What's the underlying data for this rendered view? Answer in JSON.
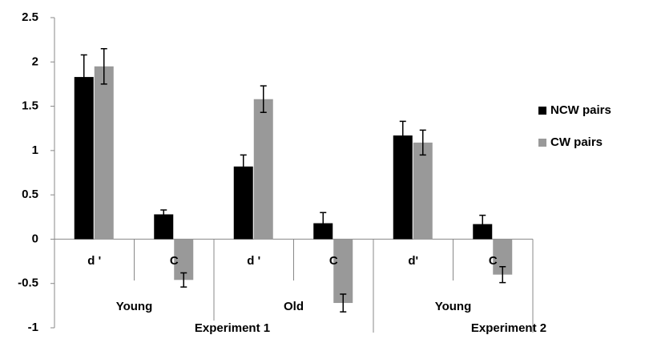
{
  "chart_data": {
    "type": "bar",
    "categories": [
      "d '",
      "C",
      "d '",
      "C",
      "d'",
      "C"
    ],
    "groups": [
      "Young",
      "Old",
      "Young"
    ],
    "experiments": [
      "Experiment 1",
      "Experiment 2"
    ],
    "series": [
      {
        "name": "NCW pairs",
        "color": "#000000",
        "values": [
          1.83,
          0.28,
          0.82,
          0.18,
          1.17,
          0.17
        ],
        "errors": [
          0.25,
          0.05,
          0.13,
          0.12,
          0.16,
          0.1
        ]
      },
      {
        "name": "CW pairs",
        "color": "#999999",
        "values": [
          1.95,
          -0.46,
          1.58,
          -0.72,
          1.09,
          -0.4
        ],
        "errors": [
          0.2,
          0.08,
          0.15,
          0.1,
          0.14,
          0.09
        ]
      }
    ],
    "ylim": [
      -1,
      2.5
    ],
    "yticks": [
      -1,
      -0.5,
      0,
      0.5,
      1,
      1.5,
      2,
      2.5
    ],
    "legend": "right"
  }
}
